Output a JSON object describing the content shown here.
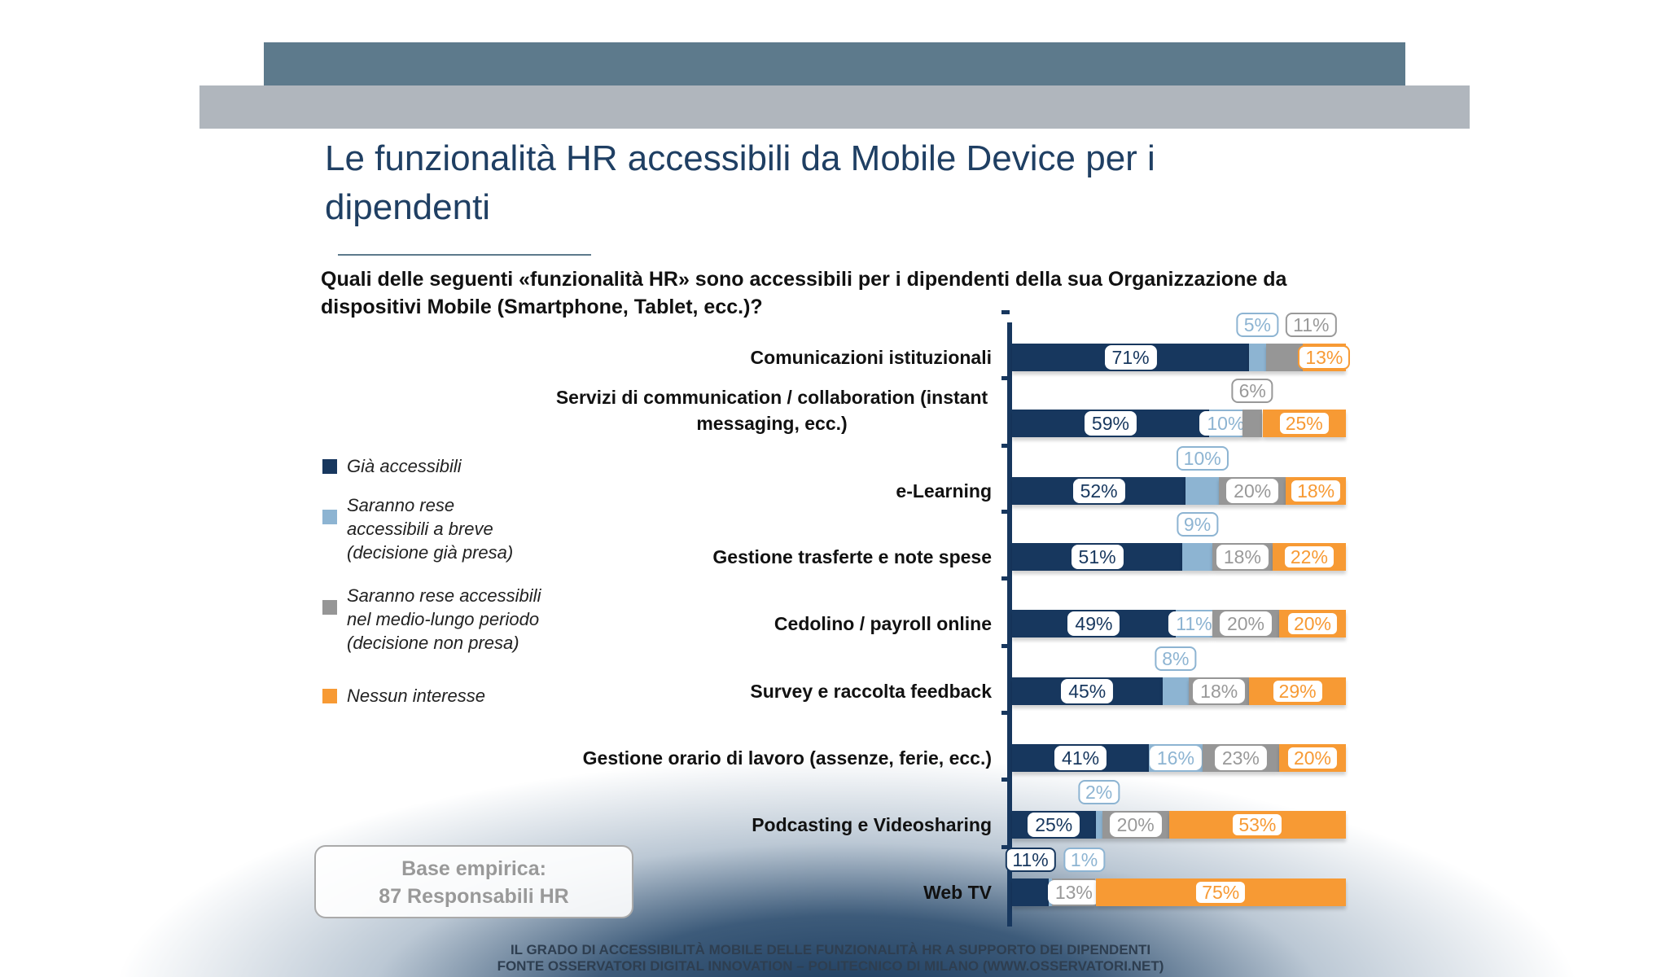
{
  "title": "Le funzionalità HR accessibili da Mobile Device per i dipendenti",
  "question": "Quali delle seguenti «funzionalità HR» sono accessibili per i dipendenti della sua Organizzazione da dispositivi Mobile (Smartphone, Tablet, ecc.)?",
  "base_box": {
    "line1": "Base empirica:",
    "line2": "87 Responsabili HR"
  },
  "footer": {
    "line1": "IL GRADO DI ACCESSIBILITÀ MOBILE DELLE  FUNZIONALITÀ HR A SUPPORTO DEI DIPENDENTI",
    "line2": "FONTE OSSERVATORI DIGITAL INNOVATION – POLITECNICO DI MILANO (WWW.OSSERVATORI.NET)"
  },
  "chart_data": {
    "type": "bar",
    "orientation": "horizontal",
    "stacked": true,
    "unit": "%",
    "xlim": [
      0,
      100
    ],
    "grid": false,
    "legend_placement": "left",
    "categories": [
      "Comunicazioni istituzionali",
      "Servizi di communication / collaboration (instant messaging, ecc.)",
      "e-Learning",
      "Gestione trasferte e note spese",
      "Cedolino / payroll online",
      "Survey e raccolta feedback",
      "Gestione orario di lavoro (assenze, ferie, ecc.)",
      "Podcasting e Videosharing",
      "Web TV"
    ],
    "series": [
      {
        "name": "Già accessibili",
        "color": "#17375e",
        "values": [
          71,
          59,
          52,
          51,
          49,
          45,
          41,
          25,
          11
        ]
      },
      {
        "name": "Saranno rese accessibili a breve (decisione già presa)",
        "color": "#8db4d2",
        "values": [
          5,
          10,
          10,
          9,
          11,
          8,
          16,
          2,
          1
        ]
      },
      {
        "name": "Saranno rese accessibili nel medio-lungo periodo (decisione non presa)",
        "color": "#969696",
        "values": [
          11,
          6,
          20,
          18,
          20,
          18,
          23,
          20,
          13
        ]
      },
      {
        "name": "Nessun interesse",
        "color": "#f79a34",
        "values": [
          13,
          25,
          18,
          22,
          20,
          29,
          20,
          53,
          75
        ]
      }
    ]
  }
}
